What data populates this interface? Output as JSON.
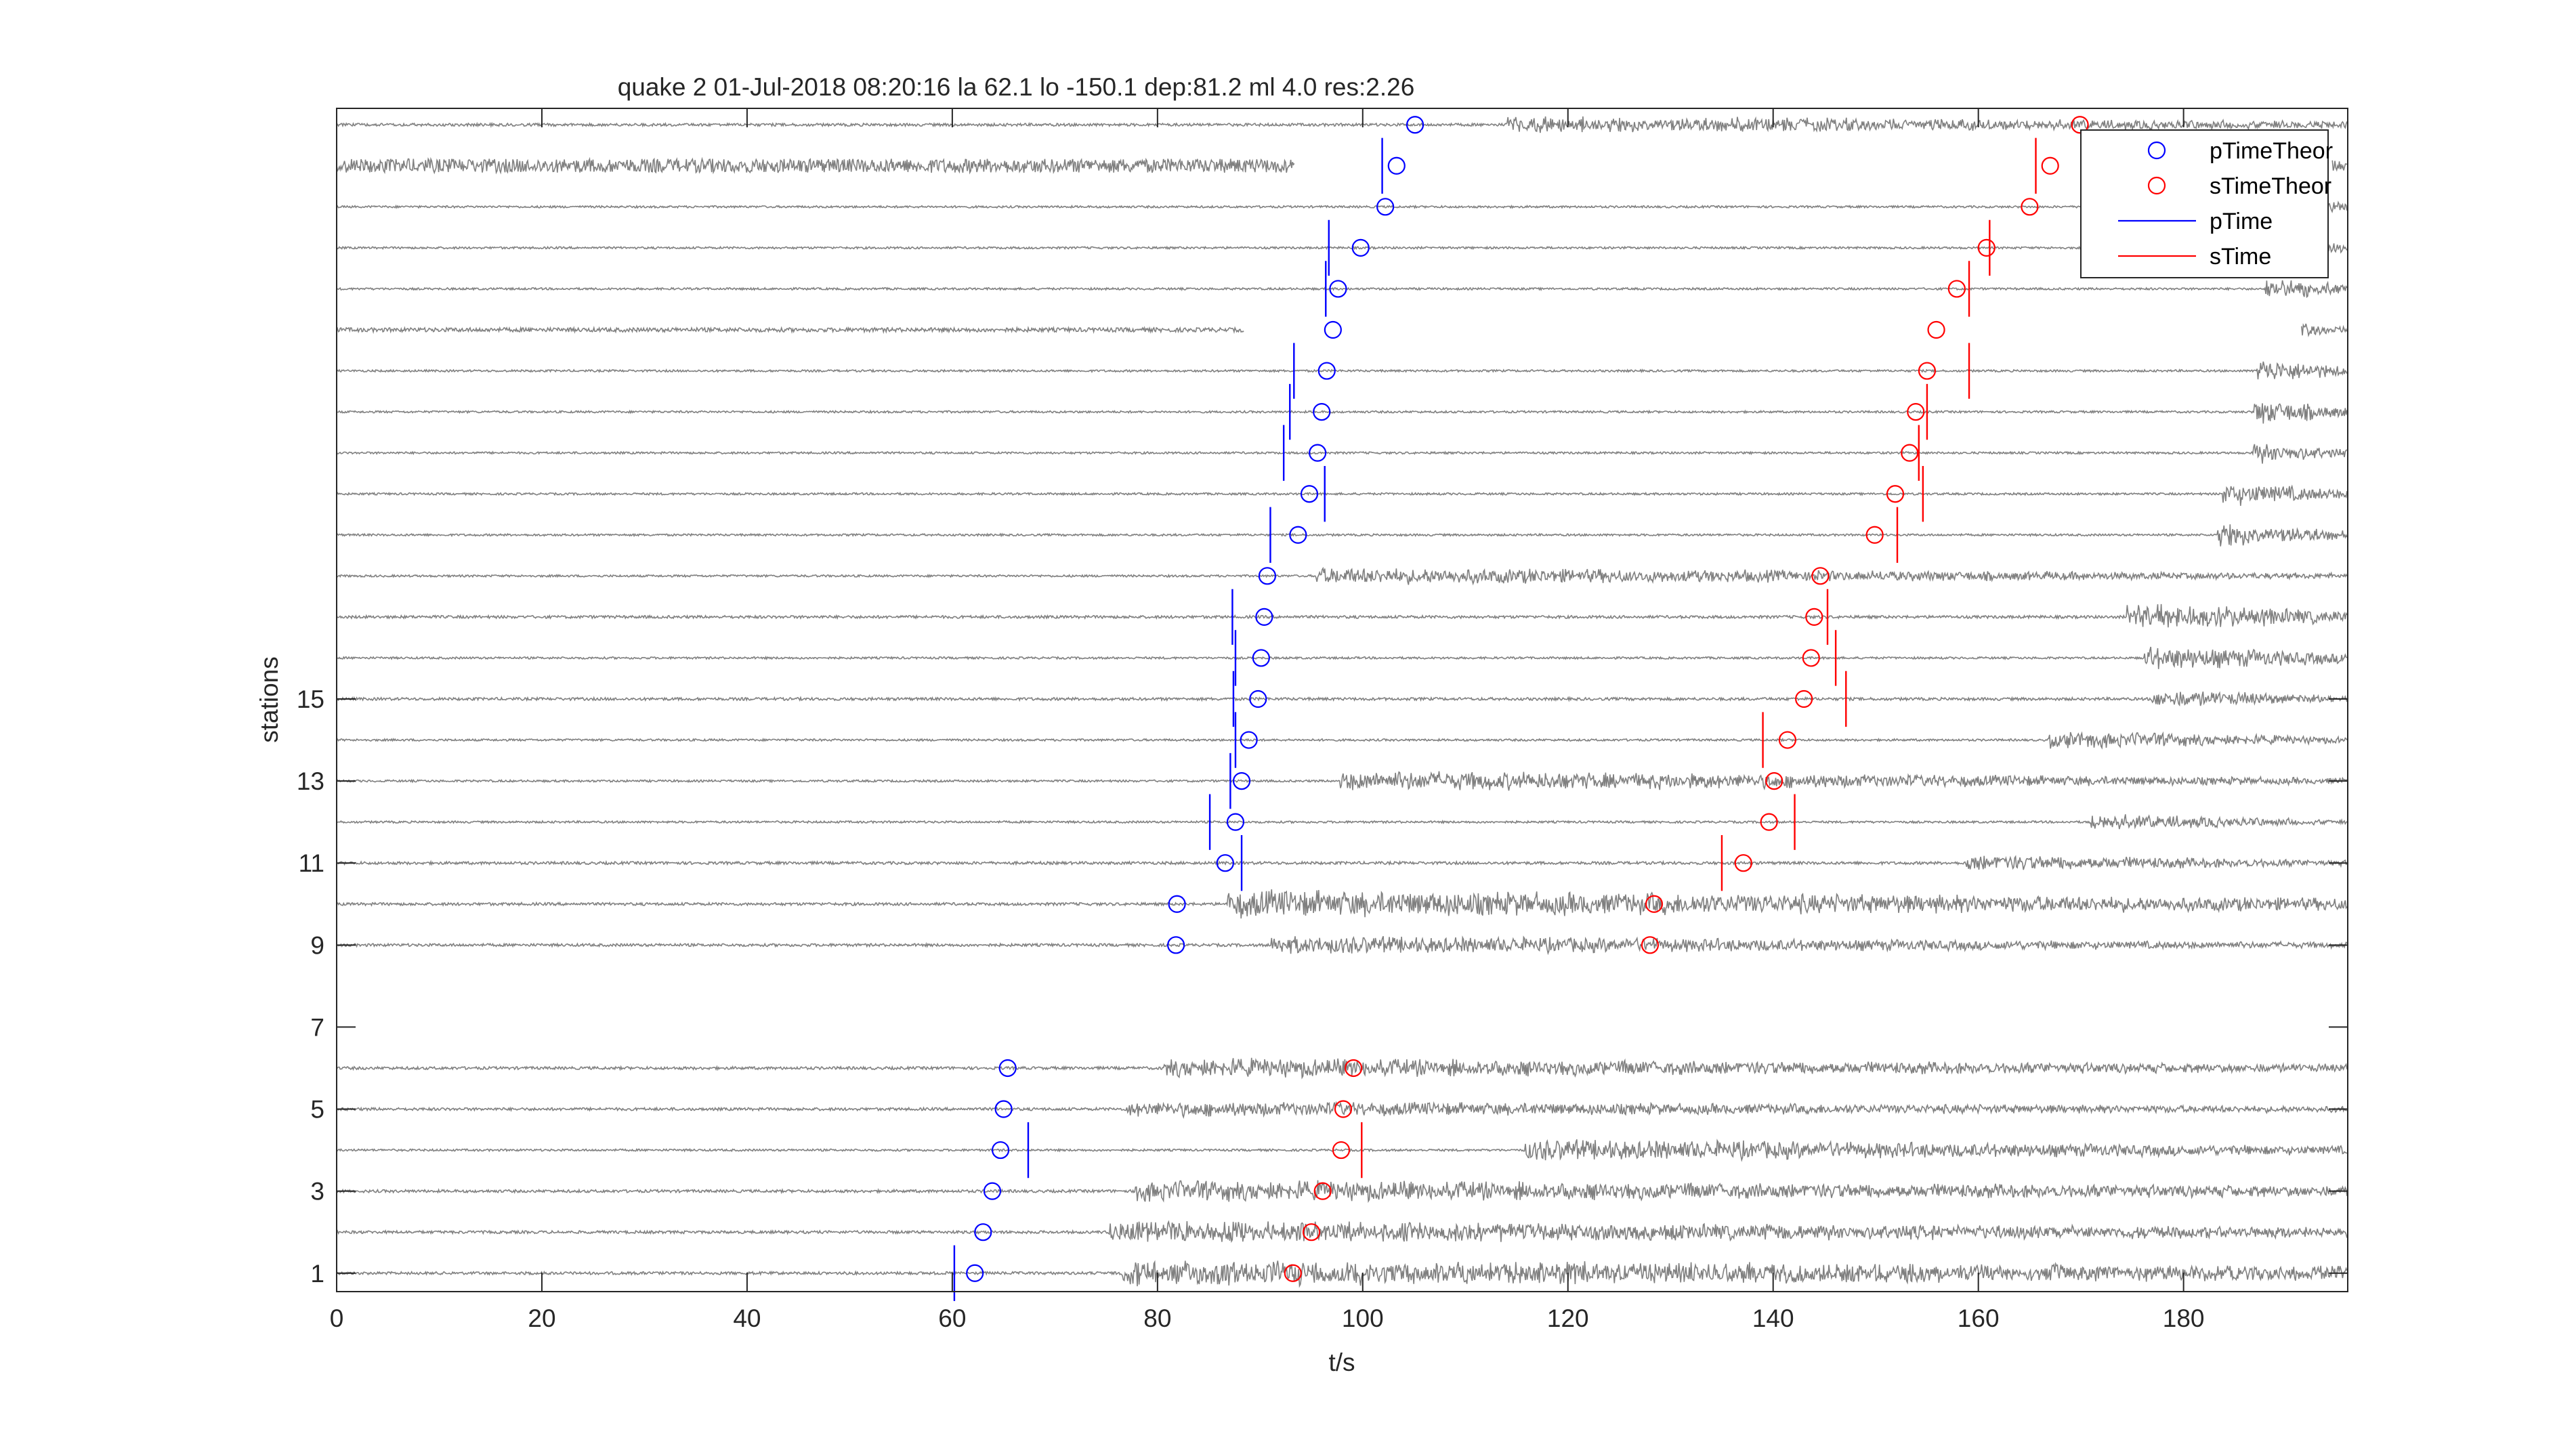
{
  "chart_data": {
    "type": "scatter",
    "title": "quake 2 01-Jul-2018 08:20:16  la 62.1 lo -150.1 dep:81.2 ml 4.0 res:2.26",
    "xlabel": "t/s",
    "ylabel": "stations",
    "xlim": [
      0,
      196
    ],
    "ylim": [
      0.55,
      29.4
    ],
    "x_ticks": [
      0,
      20,
      40,
      60,
      80,
      100,
      120,
      140,
      160,
      180
    ],
    "y_ticks": [
      1,
      3,
      5,
      7,
      9,
      11,
      13,
      15
    ],
    "grid": false,
    "legend_placement": "top-right",
    "trace_color": "#808080",
    "legend": [
      {
        "label": "pTimeTheor",
        "marker": "circle",
        "color": "#0000ff"
      },
      {
        "label": "sTimeTheor",
        "marker": "circle",
        "color": "#ff0000"
      },
      {
        "label": "pTime",
        "marker": "line",
        "color": "#0000ff"
      },
      {
        "label": "sTime",
        "marker": "line",
        "color": "#ff0000"
      }
    ],
    "series": [
      {
        "name": "pTimeTheor",
        "color": "#0000ff",
        "points": [
          [
            62.2,
            1
          ],
          [
            63.0,
            2
          ],
          [
            63.9,
            3
          ],
          [
            64.7,
            4
          ],
          [
            65.0,
            5
          ],
          [
            65.4,
            6
          ],
          [
            81.8,
            9
          ],
          [
            81.9,
            10
          ],
          [
            86.6,
            11
          ],
          [
            87.6,
            12
          ],
          [
            88.2,
            13
          ],
          [
            88.9,
            14
          ],
          [
            89.8,
            15
          ],
          [
            90.1,
            16
          ],
          [
            90.4,
            17
          ],
          [
            90.7,
            18
          ],
          [
            93.7,
            19
          ],
          [
            94.8,
            20
          ],
          [
            95.6,
            21
          ],
          [
            96.0,
            22
          ],
          [
            96.5,
            23
          ],
          [
            97.1,
            24
          ],
          [
            97.6,
            25
          ],
          [
            99.8,
            26
          ],
          [
            102.2,
            27
          ],
          [
            103.3,
            28
          ],
          [
            105.1,
            29
          ]
        ]
      },
      {
        "name": "sTimeTheor",
        "color": "#ff0000",
        "points": [
          [
            93.2,
            1
          ],
          [
            95.0,
            2
          ],
          [
            96.1,
            3
          ],
          [
            97.9,
            4
          ],
          [
            98.1,
            5
          ],
          [
            99.1,
            6
          ],
          [
            128.0,
            9
          ],
          [
            128.4,
            10
          ],
          [
            137.1,
            11
          ],
          [
            139.6,
            12
          ],
          [
            140.1,
            13
          ],
          [
            141.4,
            14
          ],
          [
            143.0,
            15
          ],
          [
            143.7,
            16
          ],
          [
            144.0,
            17
          ],
          [
            144.6,
            18
          ],
          [
            149.9,
            19
          ],
          [
            151.9,
            20
          ],
          [
            153.3,
            21
          ],
          [
            153.9,
            22
          ],
          [
            155.0,
            23
          ],
          [
            155.9,
            24
          ],
          [
            157.9,
            25
          ],
          [
            160.8,
            26
          ],
          [
            165.0,
            27
          ],
          [
            167.0,
            28
          ],
          [
            169.9,
            29
          ]
        ]
      },
      {
        "name": "pTime",
        "color": "#0000ff",
        "picks": [
          [
            60.2,
            1
          ],
          [
            67.4,
            4
          ],
          [
            88.2,
            11
          ],
          [
            85.1,
            12
          ],
          [
            87.1,
            13
          ],
          [
            87.6,
            14
          ],
          [
            87.4,
            15
          ],
          [
            87.6,
            16
          ],
          [
            87.3,
            17
          ],
          [
            91.0,
            19
          ],
          [
            96.3,
            20
          ],
          [
            92.3,
            21
          ],
          [
            92.9,
            22
          ],
          [
            93.3,
            23
          ],
          [
            96.4,
            25
          ],
          [
            96.7,
            26
          ],
          [
            101.9,
            28
          ]
        ]
      },
      {
        "name": "sTime",
        "color": "#ff0000",
        "picks": [
          [
            99.9,
            4
          ],
          [
            135.0,
            11
          ],
          [
            142.1,
            12
          ],
          [
            139.0,
            14
          ],
          [
            147.1,
            15
          ],
          [
            146.1,
            16
          ],
          [
            145.3,
            17
          ],
          [
            152.1,
            19
          ],
          [
            154.6,
            20
          ],
          [
            154.2,
            21
          ],
          [
            155.0,
            22
          ],
          [
            159.1,
            23
          ],
          [
            159.1,
            25
          ],
          [
            161.1,
            26
          ],
          [
            165.6,
            28
          ]
        ]
      }
    ],
    "traces": [
      {
        "station": 1,
        "noise": 0.04,
        "segments": [
          [
            0,
            196
          ]
        ],
        "burst": [
          76.5,
          0.42,
          0.45
        ]
      },
      {
        "station": 2,
        "noise": 0.04,
        "segments": [
          [
            0,
            196
          ]
        ],
        "burst": [
          75.3,
          0.35,
          0.5
        ]
      },
      {
        "station": 3,
        "noise": 0.04,
        "segments": [
          [
            0,
            196
          ]
        ],
        "burst": [
          77.8,
          0.35,
          0.5
        ]
      },
      {
        "station": 4,
        "noise": 0.03,
        "segments": [
          [
            0,
            196
          ]
        ],
        "burst": [
          115.8,
          0.35,
          0.6
        ]
      },
      {
        "station": 5,
        "noise": 0.04,
        "segments": [
          [
            0,
            196
          ]
        ],
        "burst": [
          77.0,
          0.25,
          0.6
        ]
      },
      {
        "station": 6,
        "noise": 0.04,
        "segments": [
          [
            0,
            196
          ]
        ],
        "burst": [
          80.6,
          0.32,
          0.6
        ]
      },
      {
        "station": 9,
        "noise": 0.04,
        "segments": [
          [
            0,
            196
          ]
        ],
        "burst": [
          91.0,
          0.3,
          0.7
        ]
      },
      {
        "station": 10,
        "noise": 0.04,
        "segments": [
          [
            0,
            196
          ]
        ],
        "burst": [
          86.8,
          0.45,
          0.55
        ]
      },
      {
        "station": 11,
        "noise": 0.04,
        "segments": [
          [
            0,
            196
          ]
        ],
        "burst": [
          158.8,
          0.28,
          0.7
        ]
      },
      {
        "station": 12,
        "noise": 0.03,
        "segments": [
          [
            0,
            196
          ]
        ],
        "burst": [
          170.8,
          0.28,
          0.8
        ]
      },
      {
        "station": 13,
        "noise": 0.03,
        "segments": [
          [
            0,
            196
          ]
        ],
        "burst": [
          97.8,
          0.33,
          0.7
        ]
      },
      {
        "station": 14,
        "noise": 0.03,
        "segments": [
          [
            0,
            196
          ]
        ],
        "burst": [
          166.8,
          0.3,
          0.7
        ]
      },
      {
        "station": 15,
        "noise": 0.04,
        "segments": [
          [
            0,
            196
          ]
        ],
        "burst": [
          176.9,
          0.3,
          0.7
        ]
      },
      {
        "station": 16,
        "noise": 0.03,
        "segments": [
          [
            0,
            196
          ]
        ],
        "burst": [
          176.2,
          0.4,
          0.6
        ]
      },
      {
        "station": 17,
        "noise": 0.04,
        "segments": [
          [
            0,
            196
          ]
        ],
        "burst": [
          174.5,
          0.45,
          0.6
        ]
      },
      {
        "station": 18,
        "noise": 0.03,
        "segments": [
          [
            0,
            196
          ]
        ],
        "burst": [
          95.4,
          0.28,
          0.7
        ]
      },
      {
        "station": 19,
        "noise": 0.03,
        "segments": [
          [
            0,
            196
          ]
        ],
        "burst": [
          183.3,
          0.42,
          0.7
        ]
      },
      {
        "station": 20,
        "noise": 0.03,
        "segments": [
          [
            0,
            196
          ]
        ],
        "burst": [
          183.8,
          0.4,
          0.7
        ]
      },
      {
        "station": 21,
        "noise": 0.03,
        "segments": [
          [
            0,
            196
          ]
        ],
        "burst": [
          186.7,
          0.35,
          0.7
        ]
      },
      {
        "station": 22,
        "noise": 0.03,
        "segments": [
          [
            0,
            196
          ]
        ],
        "burst": [
          186.9,
          0.42,
          0.7
        ]
      },
      {
        "station": 23,
        "noise": 0.03,
        "segments": [
          [
            0,
            196
          ]
        ],
        "burst": [
          187.1,
          0.4,
          0.7
        ]
      },
      {
        "station": 24,
        "noise": 0.06,
        "segments": [
          [
            0,
            88.4
          ],
          [
            191.5,
            196
          ]
        ],
        "burst": [
          191.5,
          0.25,
          0.8
        ]
      },
      {
        "station": 25,
        "noise": 0.03,
        "segments": [
          [
            0,
            196
          ]
        ],
        "burst": [
          188.0,
          0.4,
          0.7
        ]
      },
      {
        "station": 26,
        "noise": 0.03,
        "segments": [
          [
            0,
            196
          ]
        ],
        "burst": [
          191.0,
          0.3,
          0.7
        ]
      },
      {
        "station": 27,
        "noise": 0.03,
        "segments": [
          [
            0,
            196
          ]
        ],
        "burst": [
          194.0,
          0.3,
          0.7
        ]
      },
      {
        "station": 28,
        "noise": 0.2,
        "segments": [
          [
            0,
            93.4
          ],
          [
            194.5,
            196
          ]
        ],
        "burst": [
          194.5,
          0.3,
          0.7
        ]
      },
      {
        "station": 29,
        "noise": 0.04,
        "segments": [
          [
            0,
            196
          ]
        ],
        "burst": [
          114.0,
          0.28,
          0.6
        ]
      }
    ]
  }
}
